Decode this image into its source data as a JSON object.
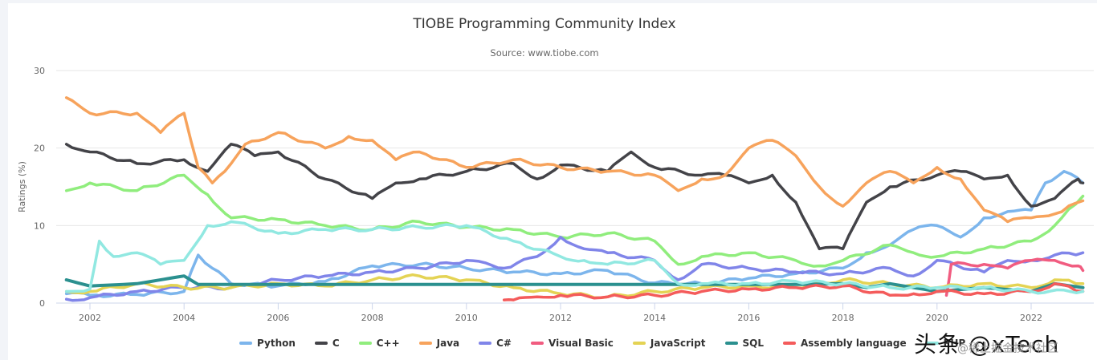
{
  "chart_data": {
    "type": "line",
    "title": "TIOBE Programming Community Index",
    "subtitle": "Source: www.tiobe.com",
    "xlabel": "",
    "ylabel": "Ratings (%)",
    "xlim": [
      2001.5,
      2023.2
    ],
    "ylim": [
      0,
      30
    ],
    "x_ticks": [
      "2002",
      "2004",
      "2006",
      "2008",
      "2010",
      "2012",
      "2014",
      "2016",
      "2018",
      "2020",
      "2022"
    ],
    "y_ticks": [
      "0",
      "10",
      "20",
      "30"
    ],
    "grid": true,
    "legend_position": "bottom",
    "series": [
      {
        "name": "Python",
        "color": "#7cb5ec",
        "x": [
          2001.5,
          2002,
          2003,
          2004,
          2004.3,
          2004.6,
          2005,
          2006,
          2007,
          2008,
          2009,
          2010,
          2011,
          2012,
          2013,
          2014,
          2015,
          2016,
          2017,
          2018,
          2018.5,
          2019,
          2019.5,
          2020,
          2020.5,
          2021,
          2021.5,
          2022,
          2022.3,
          2022.7,
          2023.1
        ],
        "values": [
          1.2,
          1.0,
          1.1,
          1.5,
          6.2,
          4.5,
          2.5,
          2.2,
          2.8,
          4.8,
          5.0,
          4.5,
          4.0,
          3.8,
          4.2,
          2.6,
          2.5,
          3.2,
          3.8,
          4.5,
          6.5,
          7.5,
          9.5,
          10.0,
          8.5,
          11.0,
          11.8,
          12.0,
          15.5,
          17.0,
          15.5
        ]
      },
      {
        "name": "C",
        "color": "#434348",
        "x": [
          2001.5,
          2002,
          2003,
          2004,
          2004.5,
          2005,
          2005.5,
          2006,
          2007,
          2008,
          2008.5,
          2009,
          2010,
          2011,
          2011.5,
          2012,
          2013,
          2013.5,
          2014,
          2015,
          2015.5,
          2016,
          2016.5,
          2017,
          2017.5,
          2018,
          2018.5,
          2019,
          2020,
          2020.5,
          2021,
          2021.5,
          2022,
          2022.5,
          2023,
          2023.1
        ],
        "values": [
          20.5,
          19.5,
          18.0,
          18.5,
          17.0,
          20.5,
          19.0,
          19.5,
          16.0,
          13.5,
          15.5,
          16.0,
          17.0,
          18.0,
          16.0,
          17.8,
          17.0,
          19.5,
          17.5,
          16.5,
          16.5,
          15.5,
          16.5,
          13.0,
          7.0,
          7.0,
          13.0,
          15.0,
          16.5,
          17.0,
          16.0,
          16.5,
          12.5,
          13.5,
          16.0,
          15.5
        ]
      },
      {
        "name": "C++",
        "color": "#90ed7d",
        "x": [
          2001.5,
          2002,
          2003,
          2004,
          2004.5,
          2005,
          2006,
          2007,
          2008,
          2009,
          2010,
          2011,
          2012,
          2013,
          2014,
          2014.5,
          2015,
          2016,
          2017,
          2017.5,
          2018,
          2019,
          2019.5,
          2020,
          2021,
          2022,
          2022.5,
          2023.1
        ],
        "values": [
          14.5,
          15.5,
          14.5,
          16.5,
          14.0,
          11.0,
          10.8,
          10.0,
          9.5,
          10.5,
          9.8,
          9.5,
          8.5,
          9.0,
          8.0,
          5.0,
          6.0,
          6.5,
          5.5,
          4.8,
          5.5,
          7.5,
          6.5,
          6.0,
          7.0,
          8.0,
          10.0,
          13.8
        ]
      },
      {
        "name": "Java",
        "color": "#f7a35c",
        "x": [
          2001.5,
          2002,
          2003,
          2003.5,
          2004,
          2004.3,
          2004.6,
          2005,
          2005.3,
          2006,
          2007,
          2007.5,
          2008,
          2008.5,
          2009,
          2010,
          2011,
          2012,
          2013,
          2014,
          2014.5,
          2015,
          2015.5,
          2016,
          2016.5,
          2017,
          2017.5,
          2018,
          2018.5,
          2019,
          2019.5,
          2020,
          2020.5,
          2021,
          2021.5,
          2022,
          2022.5,
          2023.1
        ],
        "values": [
          26.5,
          24.5,
          24.5,
          22.0,
          24.5,
          17.5,
          15.5,
          18.0,
          20.5,
          22.0,
          20.0,
          21.5,
          21.0,
          18.5,
          19.5,
          17.5,
          18.5,
          17.5,
          17.0,
          16.5,
          14.5,
          16.0,
          16.5,
          20.0,
          21.0,
          19.0,
          15.0,
          12.5,
          15.5,
          17.0,
          15.5,
          17.5,
          16.0,
          12.0,
          10.5,
          11.0,
          11.5,
          13.2
        ]
      },
      {
        "name": "C#",
        "color": "#8085e9",
        "x": [
          2001.5,
          2002,
          2003,
          2004,
          2005,
          2006,
          2007,
          2008,
          2009,
          2010,
          2010.8,
          2011.5,
          2012,
          2012.5,
          2013,
          2014,
          2014.5,
          2015,
          2016,
          2017,
          2018,
          2019,
          2019.5,
          2020,
          2021,
          2021.5,
          2022,
          2022.5,
          2023.1
        ],
        "values": [
          0.5,
          0.7,
          1.5,
          2.0,
          2.0,
          3.0,
          3.5,
          4.0,
          4.5,
          5.5,
          4.5,
          6.0,
          8.5,
          7.0,
          6.5,
          5.5,
          3.0,
          5.0,
          4.5,
          4.0,
          3.8,
          4.5,
          3.5,
          5.5,
          4.0,
          5.5,
          5.5,
          6.2,
          6.5
        ]
      },
      {
        "name": "Visual Basic",
        "color": "#f15c80",
        "x": [
          2020.2,
          2020.3,
          2021,
          2021.5,
          2022,
          2022.5,
          2023,
          2023.1
        ],
        "values": [
          1.0,
          5.0,
          5.0,
          4.5,
          5.5,
          5.5,
          4.8,
          4.2
        ]
      },
      {
        "name": "JavaScript",
        "color": "#e4d354",
        "x": [
          2001.5,
          2002,
          2003,
          2004,
          2005,
          2006,
          2007,
          2008,
          2009,
          2010,
          2011,
          2012,
          2013,
          2014,
          2015,
          2016,
          2017,
          2018,
          2019,
          2020,
          2021,
          2022,
          2022.5,
          2023.1
        ],
        "values": [
          1.5,
          1.5,
          2.5,
          2.0,
          2.0,
          2.5,
          2.2,
          3.0,
          3.5,
          3.0,
          2.0,
          1.2,
          0.8,
          1.5,
          2.0,
          2.2,
          2.0,
          3.0,
          2.5,
          2.0,
          2.5,
          2.0,
          3.0,
          2.5
        ]
      },
      {
        "name": "SQL",
        "color": "#2b908f",
        "x": [
          2001.5,
          2002,
          2003,
          2004,
          2004.3,
          2005,
          2006,
          2008,
          2010,
          2012,
          2014,
          2016,
          2017,
          2018,
          2018.5,
          2019,
          2020,
          2021,
          2022,
          2022.5,
          2023.1
        ],
        "values": [
          3.0,
          2.2,
          2.5,
          3.5,
          2.4,
          2.4,
          2.4,
          2.4,
          2.4,
          2.4,
          2.4,
          2.4,
          2.4,
          2.5,
          2.0,
          2.5,
          1.5,
          2.0,
          1.5,
          2.5,
          2.0
        ]
      },
      {
        "name": "Assembly language",
        "color": "#f45b5b",
        "x": [
          2010.8,
          2011,
          2011.5,
          2012,
          2013,
          2014,
          2015,
          2016,
          2017,
          2018,
          2019,
          2019.5,
          2020,
          2021,
          2022,
          2022.5,
          2023.1
        ],
        "values": [
          0.4,
          0.4,
          0.8,
          1.0,
          0.8,
          1.0,
          1.5,
          1.8,
          2.0,
          2.2,
          1.0,
          1.2,
          1.5,
          1.2,
          1.5,
          2.5,
          1.5
        ]
      },
      {
        "name": "PHP",
        "color": "#91e8e1",
        "x": [
          2001.5,
          2002,
          2002.2,
          2002.5,
          2003,
          2003.5,
          2004,
          2004.5,
          2005,
          2006,
          2007,
          2008,
          2009,
          2010,
          2011,
          2012,
          2012.5,
          2013,
          2014,
          2014.5,
          2015,
          2016,
          2017,
          2018,
          2019,
          2020,
          2021,
          2022,
          2023.1
        ],
        "values": [
          1.5,
          1.8,
          8.0,
          6.0,
          6.5,
          5.0,
          5.5,
          10.0,
          10.5,
          9.0,
          9.5,
          9.5,
          9.8,
          10.0,
          8.0,
          6.0,
          5.5,
          5.0,
          5.5,
          2.5,
          2.5,
          2.5,
          2.8,
          2.5,
          2.0,
          2.0,
          2.0,
          1.5,
          1.5
        ]
      }
    ]
  },
  "watermark": {
    "main": "头条 @xTech",
    "sub": "@稀土掘金技术社区"
  }
}
